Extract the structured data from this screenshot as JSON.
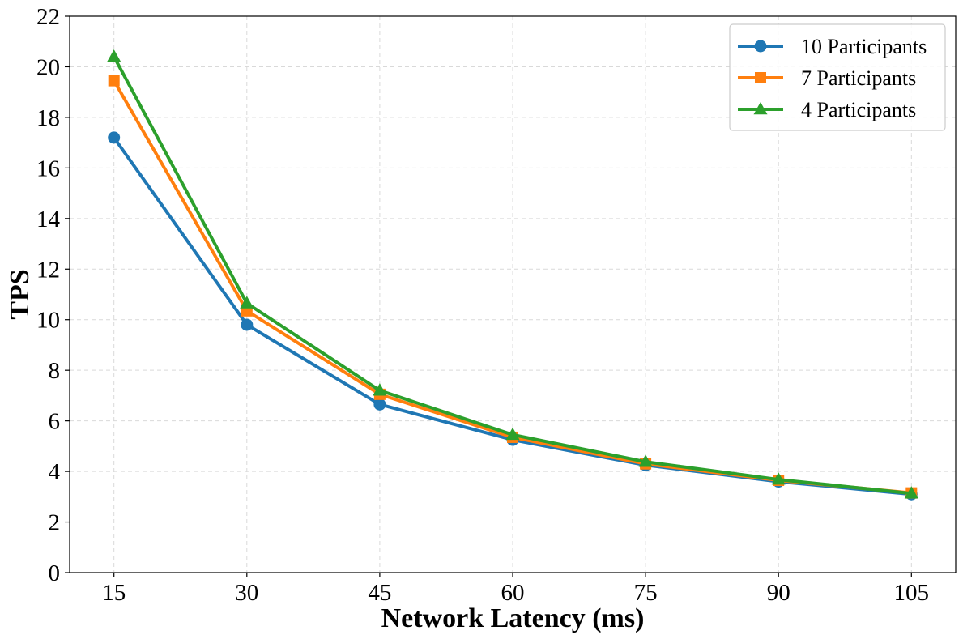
{
  "chart_data": {
    "type": "line",
    "title": "",
    "xlabel": "Network Latency (ms)",
    "ylabel": "TPS",
    "x": [
      15,
      30,
      45,
      60,
      75,
      90,
      105
    ],
    "x_tick_labels": [
      "15",
      "30",
      "45",
      "60",
      "75",
      "90",
      "105"
    ],
    "xlim": [
      10,
      110
    ],
    "ylim": [
      0,
      22
    ],
    "y_ticks": [
      0,
      2,
      4,
      6,
      8,
      10,
      12,
      14,
      16,
      18,
      20,
      22
    ],
    "grid": true,
    "legend_position": "top-right",
    "series": [
      {
        "name": "10 Participants",
        "color": "#1f77b4",
        "marker": "circle",
        "values": [
          17.2,
          9.8,
          6.65,
          5.25,
          4.25,
          3.6,
          3.1
        ]
      },
      {
        "name": "7 Participants",
        "color": "#ff7f0e",
        "marker": "square",
        "values": [
          19.45,
          10.35,
          7.05,
          5.35,
          4.3,
          3.65,
          3.15
        ]
      },
      {
        "name": "4 Participants",
        "color": "#2ca02c",
        "marker": "triangle",
        "values": [
          20.4,
          10.65,
          7.2,
          5.45,
          4.38,
          3.68,
          3.13
        ]
      }
    ]
  }
}
